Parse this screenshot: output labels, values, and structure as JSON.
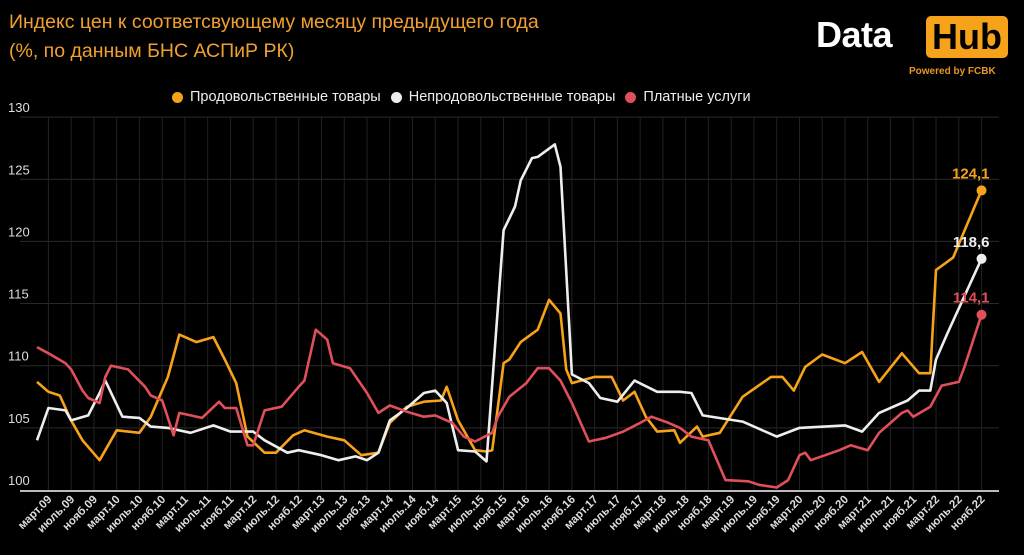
{
  "title": {
    "line1": "Индекс цен к соответсвующему месяцу предыдущего года",
    "line2": "(%, по данным БНС АСПиР РК)"
  },
  "logo": {
    "data": "Data",
    "hub": "Hub",
    "powered": "Powered by FCBK"
  },
  "chart_data": {
    "type": "line",
    "title": "Индекс цен к соответсвующему месяцу предыдущего года (%, по данным БНС АСПиР РК)",
    "x_unit": "months since 2009-01",
    "ylim": [
      100,
      130
    ],
    "yticks": [
      "100",
      "105",
      "110",
      "115",
      "120",
      "125",
      "130"
    ],
    "grid": true,
    "legend_position": "top-center",
    "xtick_labels": [
      "март.09",
      "июль.09",
      "нояб.09",
      "март.10",
      "июль.10",
      "нояб.10",
      "март.11",
      "июль.11",
      "нояб.11",
      "март.12",
      "июль.12",
      "нояб.12",
      "март.13",
      "июль.13",
      "нояб.13",
      "март.14",
      "июль.14",
      "нояб.14",
      "март.15",
      "июль.15",
      "нояб.15",
      "март.16",
      "июль.16",
      "нояб.16",
      "март.17",
      "июль.17",
      "нояб.17",
      "март.18",
      "июль.18",
      "нояб.18",
      "март.19",
      "июль.19",
      "нояб.19",
      "март.20",
      "июль.20",
      "нояб.20",
      "март.21",
      "июль.21",
      "нояб.21",
      "март.22",
      "июль.22",
      "нояб.22"
    ],
    "xtick_months": [
      2,
      6,
      10,
      14,
      18,
      22,
      26,
      30,
      34,
      38,
      42,
      46,
      50,
      54,
      58,
      62,
      66,
      70,
      74,
      78,
      82,
      86,
      90,
      94,
      98,
      102,
      106,
      110,
      114,
      118,
      122,
      126,
      130,
      134,
      138,
      142,
      146,
      150,
      154,
      158,
      162,
      166
    ],
    "series": [
      {
        "name": "Продовольственные товары",
        "color": "#f7a21b",
        "end_label": "124,1",
        "points": [
          [
            0,
            108.7
          ],
          [
            2,
            107.9
          ],
          [
            4,
            107.6
          ],
          [
            6,
            105.6
          ],
          [
            8,
            104
          ],
          [
            11,
            102.4
          ],
          [
            14,
            104.8
          ],
          [
            18,
            104.6
          ],
          [
            20,
            105.9
          ],
          [
            23,
            109.1
          ],
          [
            25,
            112.5
          ],
          [
            28,
            111.9
          ],
          [
            31,
            112.3
          ],
          [
            33,
            110.5
          ],
          [
            35,
            108.6
          ],
          [
            37,
            104.3
          ],
          [
            40,
            103
          ],
          [
            42,
            103
          ],
          [
            45,
            104.4
          ],
          [
            47,
            104.8
          ],
          [
            51,
            104.3
          ],
          [
            54,
            104
          ],
          [
            57,
            102.8
          ],
          [
            60,
            103
          ],
          [
            62,
            105.4
          ],
          [
            65,
            106.7
          ],
          [
            68,
            107.1
          ],
          [
            71,
            107.2
          ],
          [
            72,
            108.3
          ],
          [
            74,
            105.6
          ],
          [
            77,
            103.2
          ],
          [
            79,
            103.1
          ],
          [
            80,
            103.2
          ],
          [
            82,
            110.2
          ],
          [
            83,
            110.5
          ],
          [
            85,
            111.9
          ],
          [
            88,
            112.9
          ],
          [
            90,
            115.3
          ],
          [
            92,
            114.2
          ],
          [
            93,
            109.7
          ],
          [
            94,
            108.6
          ],
          [
            98,
            109.1
          ],
          [
            101,
            109.1
          ],
          [
            103,
            107.2
          ],
          [
            105,
            107.9
          ],
          [
            107,
            105.9
          ],
          [
            109,
            104.7
          ],
          [
            112,
            104.8
          ],
          [
            113,
            103.8
          ],
          [
            116,
            105.1
          ],
          [
            117,
            104.3
          ],
          [
            120,
            104.6
          ],
          [
            124,
            107.5
          ],
          [
            129,
            109.1
          ],
          [
            131,
            109.1
          ],
          [
            133,
            108
          ],
          [
            135,
            109.9
          ],
          [
            138,
            110.9
          ],
          [
            142,
            110.2
          ],
          [
            145,
            111.1
          ],
          [
            148,
            108.7
          ],
          [
            152,
            111
          ],
          [
            155,
            109.4
          ],
          [
            157,
            109.4
          ],
          [
            158,
            117.7
          ],
          [
            161,
            118.7
          ],
          [
            166,
            124.1
          ]
        ]
      },
      {
        "name": "Непродовольственные товары",
        "color": "#eeeeee",
        "end_label": "118,6",
        "points": [
          [
            0,
            104
          ],
          [
            2,
            106.6
          ],
          [
            5,
            106.4
          ],
          [
            6,
            105.6
          ],
          [
            9,
            106
          ],
          [
            11,
            107.8
          ],
          [
            12,
            108.8
          ],
          [
            15,
            105.9
          ],
          [
            18,
            105.8
          ],
          [
            20,
            105.1
          ],
          [
            23,
            105
          ],
          [
            27,
            104.6
          ],
          [
            31,
            105.2
          ],
          [
            34,
            104.7
          ],
          [
            38,
            104.7
          ],
          [
            40,
            104
          ],
          [
            44,
            103
          ],
          [
            46,
            103.2
          ],
          [
            50,
            102.8
          ],
          [
            53,
            102.4
          ],
          [
            56,
            102.7
          ],
          [
            58,
            102.4
          ],
          [
            60,
            103
          ],
          [
            62,
            105.6
          ],
          [
            65,
            106.6
          ],
          [
            68,
            107.8
          ],
          [
            70,
            108
          ],
          [
            72,
            107
          ],
          [
            74,
            103.2
          ],
          [
            77,
            103.1
          ],
          [
            79,
            102.3
          ],
          [
            82,
            120.9
          ],
          [
            84,
            122.8
          ],
          [
            85,
            124.9
          ],
          [
            87,
            126.7
          ],
          [
            88,
            126.8
          ],
          [
            91,
            127.8
          ],
          [
            92,
            126
          ],
          [
            94,
            109.3
          ],
          [
            97,
            108.6
          ],
          [
            99,
            107.4
          ],
          [
            102,
            107.1
          ],
          [
            105,
            108.8
          ],
          [
            109,
            107.9
          ],
          [
            113,
            107.9
          ],
          [
            115,
            107.8
          ],
          [
            117,
            106
          ],
          [
            124,
            105.5
          ],
          [
            130,
            104.3
          ],
          [
            134,
            105
          ],
          [
            142,
            105.2
          ],
          [
            145,
            104.7
          ],
          [
            148,
            106.2
          ],
          [
            153,
            107.2
          ],
          [
            155,
            108
          ],
          [
            157,
            108
          ],
          [
            158,
            110.5
          ],
          [
            160,
            112.6
          ],
          [
            166,
            118.6
          ]
        ]
      },
      {
        "name": "Платные услуги",
        "color": "#e0505a",
        "end_label": "114,1",
        "points": [
          [
            0,
            111.5
          ],
          [
            2,
            111
          ],
          [
            5,
            110.2
          ],
          [
            6,
            109.7
          ],
          [
            8,
            108
          ],
          [
            9,
            107.4
          ],
          [
            11,
            107
          ],
          [
            12,
            109.1
          ],
          [
            13,
            110
          ],
          [
            16,
            109.7
          ],
          [
            19,
            108.3
          ],
          [
            20,
            107.6
          ],
          [
            22,
            107.2
          ],
          [
            24,
            104.4
          ],
          [
            25,
            106.2
          ],
          [
            29,
            105.8
          ],
          [
            32,
            107.1
          ],
          [
            33,
            106.6
          ],
          [
            35,
            106.6
          ],
          [
            37,
            103.6
          ],
          [
            38,
            103.6
          ],
          [
            40,
            106.4
          ],
          [
            43,
            106.7
          ],
          [
            46,
            108.3
          ],
          [
            47,
            108.8
          ],
          [
            49,
            112.9
          ],
          [
            51,
            112.1
          ],
          [
            52,
            110.2
          ],
          [
            55,
            109.8
          ],
          [
            58,
            107.8
          ],
          [
            60,
            106.2
          ],
          [
            62,
            106.8
          ],
          [
            65,
            106.3
          ],
          [
            68,
            105.9
          ],
          [
            70,
            106
          ],
          [
            73,
            105.4
          ],
          [
            75,
            104.3
          ],
          [
            77,
            103.9
          ],
          [
            80,
            104.6
          ],
          [
            81,
            105.9
          ],
          [
            83,
            107.5
          ],
          [
            86,
            108.6
          ],
          [
            88,
            109.8
          ],
          [
            90,
            109.8
          ],
          [
            92,
            108.8
          ],
          [
            94,
            107
          ],
          [
            97,
            103.9
          ],
          [
            100,
            104.2
          ],
          [
            103,
            104.7
          ],
          [
            106,
            105.4
          ],
          [
            108,
            105.9
          ],
          [
            111,
            105.4
          ],
          [
            113,
            105
          ],
          [
            115,
            104.3
          ],
          [
            118,
            104
          ],
          [
            121,
            100.8
          ],
          [
            125,
            100.7
          ],
          [
            127,
            100.4
          ],
          [
            130,
            100.2
          ],
          [
            132,
            100.8
          ],
          [
            134,
            102.8
          ],
          [
            135,
            103
          ],
          [
            136,
            102.4
          ],
          [
            141,
            103.2
          ],
          [
            143,
            103.6
          ],
          [
            146,
            103.2
          ],
          [
            148,
            104.6
          ],
          [
            152,
            106.2
          ],
          [
            153,
            106.4
          ],
          [
            154,
            105.9
          ],
          [
            157,
            106.7
          ],
          [
            159,
            108.4
          ],
          [
            162,
            108.7
          ],
          [
            163,
            109.9
          ],
          [
            166,
            114.1
          ]
        ]
      }
    ]
  }
}
